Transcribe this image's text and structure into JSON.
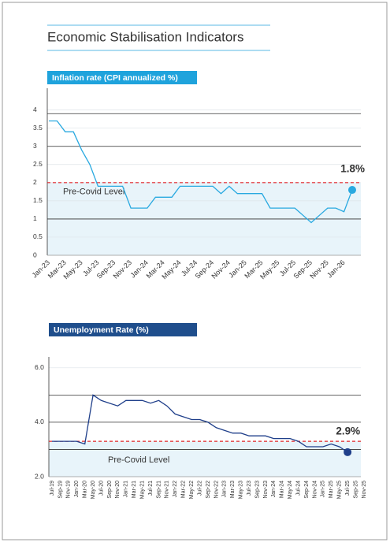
{
  "title": "Economic Stabilisation Indicators",
  "chart_data": [
    {
      "type": "line",
      "title": "Inflation rate (CPI annualized %)",
      "title_color": "#1fa3dc",
      "color": "#29a9e0",
      "categories": [
        "Jan-23",
        null,
        "Mar-23",
        null,
        "May-23",
        null,
        "Jul-23",
        null,
        "Sep-23",
        null,
        "Nov-23",
        null,
        "Jan-24",
        null,
        "Mar-24",
        null,
        "May-24",
        null,
        "Jul-24",
        null,
        "Sep-24",
        null,
        "Nov-24",
        null,
        "Jan-25",
        null,
        "Mar-25",
        null,
        "May-25",
        null,
        "Jul-25",
        null,
        "Sep-25",
        null,
        "Nov-25",
        null,
        "Jan-26",
        null
      ],
      "values": [
        3.7,
        3.7,
        3.4,
        3.4,
        2.9,
        2.5,
        1.9,
        1.9,
        1.9,
        1.9,
        1.3,
        1.3,
        1.3,
        1.6,
        1.6,
        1.6,
        1.9,
        1.9,
        1.9,
        1.9,
        1.9,
        1.7,
        1.9,
        1.7,
        1.7,
        1.7,
        1.7,
        1.3,
        1.3,
        1.3,
        1.3,
        1.1,
        0.9,
        1.1,
        1.3,
        1.3,
        1.2,
        1.8
      ],
      "value_labels": [
        null,
        null,
        null,
        null,
        null,
        null,
        null,
        null,
        null,
        null,
        null,
        null,
        null,
        null,
        null,
        null,
        null,
        null,
        null,
        null,
        null,
        null,
        null,
        null,
        null,
        null,
        null,
        null,
        null,
        null,
        null,
        null,
        null,
        null,
        null,
        null,
        null,
        "1.8%"
      ],
      "ylim": [
        0,
        4.6
      ],
      "yticks": [
        0,
        0.5,
        1,
        1.5,
        2,
        2.5,
        3,
        3.5,
        4
      ],
      "grid": true,
      "hlines": [
        1,
        3,
        3.9
      ],
      "reference": {
        "value": 2,
        "label": "Pre-Covid Level"
      }
    },
    {
      "type": "line",
      "title": "Unemployment Rate (%)",
      "title_color": "#1f4e8c",
      "color": "#1f3f8a",
      "categories": [
        "Jul-19",
        "Sep-19",
        "Nov-19",
        "Jan-20",
        "Mar-20",
        "May-20",
        "Jul-20",
        "Sep-20",
        "Nov-20",
        "Jan-21",
        "Mar-21",
        "May-21",
        "Jul-21",
        "Sep-21",
        "Nov-21",
        "Jan-22",
        "Mar-22",
        "May-22",
        "Jul-22",
        "Sep-22",
        "Nov-22",
        "Jan-23",
        "Mar-23",
        "May-23",
        "Jul-23",
        "Sep-23",
        "Nov-23",
        "Jan-24",
        "Mar-24",
        "May-24",
        "Jul-24",
        "Sep-24",
        "Nov-24",
        "Jan-25",
        "Mar-25",
        "May-25",
        "Jul-25",
        "Sep-25",
        "Nov-25"
      ],
      "values": [
        3.3,
        3.3,
        3.3,
        3.3,
        3.2,
        5.0,
        4.8,
        4.7,
        4.6,
        4.8,
        4.8,
        4.8,
        4.7,
        4.8,
        4.6,
        4.3,
        4.2,
        4.1,
        4.1,
        4.0,
        3.8,
        3.7,
        3.6,
        3.6,
        3.5,
        3.5,
        3.5,
        3.4,
        3.4,
        3.4,
        3.3,
        3.1,
        3.1,
        3.1,
        3.2,
        3.1,
        2.9,
        null,
        null
      ],
      "value_labels": [
        null,
        null,
        null,
        null,
        null,
        null,
        null,
        null,
        null,
        null,
        null,
        null,
        null,
        null,
        null,
        null,
        null,
        null,
        null,
        null,
        null,
        null,
        null,
        null,
        null,
        null,
        null,
        null,
        null,
        null,
        null,
        null,
        null,
        null,
        null,
        null,
        "2.9%",
        null,
        null
      ],
      "ylim": [
        2,
        6.4
      ],
      "yticks": [
        {
          "value": 2,
          "label": "2.0"
        },
        {
          "value": 4,
          "label": "4.0"
        },
        {
          "value": 6,
          "label": "6.0"
        }
      ],
      "grid": true,
      "hlines": [
        3,
        4,
        5
      ],
      "reference": {
        "value": 3.3,
        "label": "Pre-Covid Level"
      }
    }
  ]
}
